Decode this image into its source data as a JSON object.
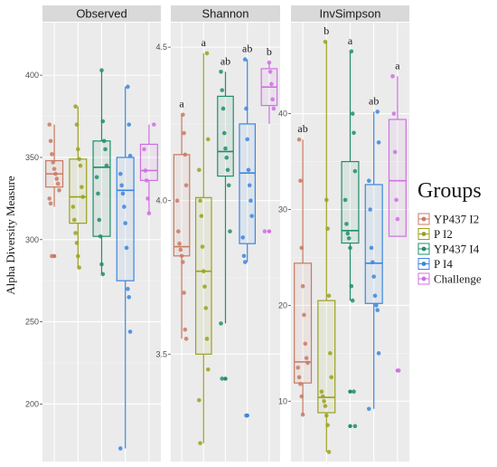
{
  "chart_data": {
    "type": "boxplot",
    "ylabel": "Alpha Diversity Measure",
    "legend": {
      "title": "Groups",
      "placement": "right",
      "groups": [
        {
          "name": "YP437 I2",
          "color": "#c87a63"
        },
        {
          "name": "P I2",
          "color": "#9aa21b"
        },
        {
          "name": "YP437 I4",
          "color": "#1f8f6a"
        },
        {
          "name": "P I4",
          "color": "#3a86e0"
        },
        {
          "name": "Challenge",
          "color": "#cf70e0"
        }
      ]
    },
    "grid": true,
    "panels": [
      {
        "title": "Observed",
        "ylim": [
          165,
          432
        ],
        "ticks": [
          200,
          250,
          300,
          350,
          400
        ],
        "boxes": [
          {
            "group": "YP437 I2",
            "min": 320,
            "q1": 332,
            "median": 340,
            "q3": 348,
            "max": 370,
            "outliers": [
              290
            ],
            "points": [
              370,
              360,
              352,
              347,
              343,
              340,
              337,
              334,
              330,
              325,
              322,
              290
            ]
          },
          {
            "group": "P I2",
            "min": 283,
            "q1": 310,
            "median": 326,
            "q3": 349,
            "max": 381,
            "outliers": [],
            "points": [
              381,
              370,
              355,
              349,
              345,
              332,
              326,
              320,
              312,
              304,
              298,
              290,
              283
            ]
          },
          {
            "group": "YP437 I4",
            "min": 279,
            "q1": 302,
            "median": 344,
            "q3": 360,
            "max": 403,
            "outliers": [],
            "points": [
              403,
              372,
              360,
              355,
              345,
              338,
              328,
              312,
              302,
              285,
              279
            ]
          },
          {
            "group": "P I4",
            "min": 173,
            "q1": 275,
            "median": 330,
            "q3": 350,
            "max": 393,
            "outliers": [],
            "points": [
              393,
              370,
              351,
              340,
              333,
              328,
              320,
              310,
              295,
              270,
              265,
              244,
              173
            ]
          },
          {
            "group": "Challenge",
            "min": 316,
            "q1": 336,
            "median": 342,
            "q3": 358,
            "max": 370,
            "outliers": [],
            "points": [
              370,
              355,
              342,
              336,
              325,
              316
            ]
          }
        ],
        "significance": []
      },
      {
        "title": "Shannon",
        "ylim": [
          3.15,
          4.58
        ],
        "ticks": [
          3.5,
          4.0,
          4.5
        ],
        "boxes": [
          {
            "group": "YP437 I2",
            "min": 3.55,
            "q1": 3.82,
            "median": 3.85,
            "q3": 4.15,
            "max": 4.28,
            "outliers": [],
            "points": [
              4.28,
              4.22,
              4.15,
              4.05,
              4.0,
              3.9,
              3.86,
              3.84,
              3.82,
              3.8,
              3.7,
              3.58,
              3.55
            ]
          },
          {
            "group": "P I2",
            "min": 3.21,
            "q1": 3.5,
            "median": 3.77,
            "q3": 4.01,
            "max": 4.48,
            "outliers": [],
            "points": [
              4.48,
              4.2,
              4.1,
              4.0,
              3.95,
              3.85,
              3.77,
              3.72,
              3.65,
              3.55,
              3.45,
              3.35,
              3.21
            ]
          },
          {
            "group": "YP437 I4",
            "min": 3.6,
            "q1": 4.08,
            "median": 4.16,
            "q3": 4.34,
            "max": 4.42,
            "outliers": [
              3.42
            ],
            "points": [
              4.42,
              4.36,
              4.3,
              4.22,
              4.17,
              4.14,
              4.1,
              4.05,
              3.9,
              3.6,
              3.42
            ]
          },
          {
            "group": "P I4",
            "min": 3.8,
            "q1": 3.86,
            "median": 4.09,
            "q3": 4.25,
            "max": 4.46,
            "outliers": [
              3.3
            ],
            "points": [
              4.46,
              4.3,
              4.2,
              4.1,
              4.05,
              4.0,
              3.95,
              3.88,
              3.82,
              3.8,
              3.3
            ]
          },
          {
            "group": "Challenge",
            "min": 4.25,
            "q1": 4.31,
            "median": 4.37,
            "q3": 4.43,
            "max": 4.45,
            "outliers": [
              3.9
            ],
            "points": [
              4.45,
              4.42,
              4.38,
              4.33,
              4.3,
              3.9
            ]
          }
        ],
        "significance": [
          "a",
          "a",
          "ab",
          "ab",
          "b"
        ]
      },
      {
        "title": "InvSimpson",
        "ylim": [
          3.7,
          49.5
        ],
        "ticks": [
          10,
          20,
          30,
          40
        ],
        "boxes": [
          {
            "group": "YP437 I2",
            "min": 8.6,
            "q1": 11.9,
            "median": 14.1,
            "q3": 24.4,
            "max": 37.3,
            "outliers": [],
            "points": [
              37.3,
              33.0,
              26.0,
              22.0,
              19.0,
              16.0,
              14.5,
              14.0,
              13.5,
              12.5,
              11.8,
              10.5,
              8.6
            ]
          },
          {
            "group": "P I2",
            "min": 4.7,
            "q1": 8.8,
            "median": 10.4,
            "q3": 20.5,
            "max": 47.5,
            "outliers": [],
            "points": [
              47.5,
              31.0,
              28.0,
              21.0,
              15.0,
              12.5,
              11.0,
              10.5,
              10.0,
              9.5,
              8.5,
              7.5,
              4.7
            ]
          },
          {
            "group": "YP437 I4",
            "min": 20.5,
            "q1": 26.5,
            "median": 27.8,
            "q3": 35.0,
            "max": 46.5,
            "outliers": [
              11.0,
              7.4
            ],
            "points": [
              46.5,
              40.0,
              38.0,
              34.0,
              31.0,
              28.5,
              27.5,
              27.0,
              26.0,
              22.0,
              20.5,
              11.0,
              7.4
            ]
          },
          {
            "group": "P I4",
            "min": 9.2,
            "q1": 20.2,
            "median": 24.4,
            "q3": 32.6,
            "max": 40.2,
            "outliers": [],
            "points": [
              40.2,
              37.0,
              33.0,
              30.0,
              26.0,
              24.5,
              23.0,
              21.0,
              20.0,
              19.5,
              15.0,
              9.2
            ]
          },
          {
            "group": "Challenge",
            "min": 27.2,
            "q1": 27.2,
            "median": 33.0,
            "q3": 39.4,
            "max": 43.9,
            "outliers": [
              13.2
            ],
            "points": [
              43.9,
              40.0,
              36.0,
              31.0,
              29.0,
              13.2
            ]
          }
        ],
        "significance": [
          "ab",
          "b",
          "a",
          "ab",
          "a"
        ]
      }
    ]
  }
}
